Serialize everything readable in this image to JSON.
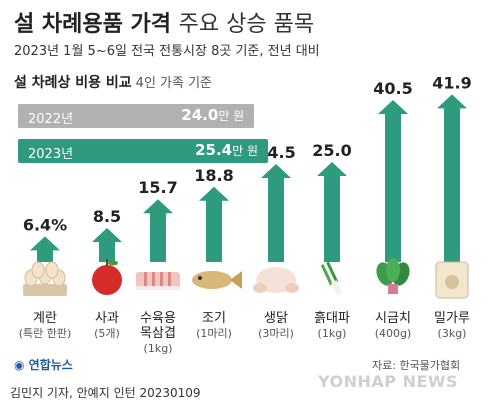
{
  "header": {
    "title_main": "설 차례용품 가격",
    "title_sub": "주요 상승 품목",
    "subtitle": "2023년 1월 5~6일 전국 전통시장 8곳 기준, 전년 대비"
  },
  "cost_section": {
    "heading": "설 차례상 비용 비교",
    "note": "4인 가족 기준",
    "rows": [
      {
        "year": "2022년",
        "value": "24.0",
        "unit": "만 원",
        "amount": 24.0
      },
      {
        "year": "2023년",
        "value": "25.4",
        "unit": "만 원",
        "amount": 25.4
      }
    ]
  },
  "chart_data": {
    "type": "bar",
    "unit": "%",
    "categories": [
      "계란",
      "사과",
      "수육용 목삼겹",
      "조기",
      "생닭",
      "흙대파",
      "시금치",
      "밀가루"
    ],
    "category_lines": [
      [
        "계란",
        "(특란 한판)"
      ],
      [
        "사과",
        "(5개)"
      ],
      [
        "수육용",
        "목삼겹",
        "(1kg)"
      ],
      [
        "조기",
        "(1마리)"
      ],
      [
        "생닭",
        "(3마리)"
      ],
      [
        "흙대파",
        "(1kg)"
      ],
      [
        "시금치",
        "(400g)"
      ],
      [
        "밀가루",
        "(3kg)"
      ]
    ],
    "values": [
      6.4,
      8.5,
      15.7,
      18.8,
      24.5,
      25.0,
      40.5,
      41.9
    ],
    "labels": [
      "6.4%",
      "8.5",
      "15.7",
      "18.8",
      "24.5",
      "25.0",
      "40.5",
      "41.9"
    ],
    "icons": [
      "egg-tray-icon",
      "apple-icon",
      "pork-belly-icon",
      "fish-icon",
      "chicken-icon",
      "green-onion-icon",
      "spinach-icon",
      "flour-bag-icon"
    ],
    "colors": {
      "arrow": "#2e9a7e",
      "arrow_light": "#cfe4dd"
    }
  },
  "colors": {
    "bar_2022": "#b1b1b1",
    "bar_2023": "#2e9a7e"
  },
  "footer": {
    "logo": "연합뉴스",
    "source": "자료: 한국물가협회",
    "credit": "김민지 기자, 안예지 인턴  20230109",
    "watermark": "YONHAP NEWS"
  }
}
